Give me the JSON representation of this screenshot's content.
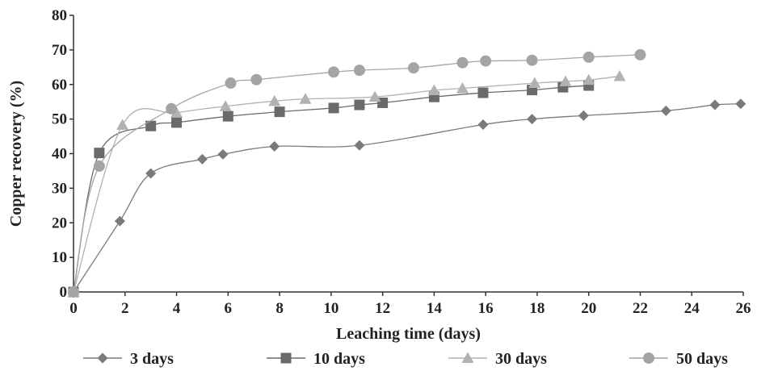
{
  "chart_data": {
    "type": "line",
    "xlabel": "Leaching time (days)",
    "ylabel": "Copper recovery (%)",
    "xlim": [
      0,
      26
    ],
    "ylim": [
      0,
      80
    ],
    "xticks": [
      "0",
      "2",
      "4",
      "6",
      "8",
      "10",
      "12",
      "14",
      "16",
      "18",
      "20",
      "22",
      "24",
      "26"
    ],
    "yticks": [
      "0",
      "10",
      "20",
      "30",
      "40",
      "50",
      "60",
      "70",
      "80"
    ],
    "grid": false,
    "legend_position": "bottom",
    "series": [
      {
        "name": "3 days",
        "marker": "diamond",
        "color": "#7a7a7a",
        "x": [
          0,
          1.8,
          3.0,
          5.0,
          5.8,
          7.8,
          11.1,
          15.9,
          17.8,
          19.8,
          23.0,
          24.9,
          25.9
        ],
        "y": [
          0,
          20.5,
          34.3,
          38.4,
          39.8,
          42.1,
          42.4,
          48.4,
          50.0,
          51.0,
          52.4,
          54.1,
          54.4
        ]
      },
      {
        "name": "10 days",
        "marker": "square",
        "color": "#6a6a6a",
        "x": [
          0,
          1.0,
          3.0,
          4.0,
          6.0,
          8.0,
          10.1,
          11.1,
          12.0,
          14.0,
          15.9,
          17.8,
          19.0,
          20.0
        ],
        "y": [
          0,
          40.2,
          48.0,
          49.0,
          50.8,
          52.1,
          53.2,
          54.1,
          54.7,
          56.4,
          57.6,
          58.4,
          59.2,
          59.7
        ]
      },
      {
        "name": "30 days",
        "marker": "triangle",
        "color": "#b2b2b2",
        "x": [
          0,
          1.9,
          4.0,
          5.9,
          7.8,
          9.0,
          11.7,
          14.0,
          15.1,
          17.9,
          19.1,
          20.0,
          21.2
        ],
        "y": [
          0,
          48.3,
          51.8,
          53.7,
          55.2,
          55.8,
          56.4,
          58.3,
          58.9,
          60.4,
          60.9,
          61.3,
          62.4
        ]
      },
      {
        "name": "50 days",
        "marker": "circle",
        "color": "#a4a4a4",
        "x": [
          0,
          1.0,
          3.8,
          6.1,
          7.1,
          10.1,
          11.1,
          13.2,
          15.1,
          16.0,
          17.8,
          20.0,
          22.0
        ],
        "y": [
          0,
          36.4,
          53.0,
          60.4,
          61.4,
          63.6,
          64.1,
          64.8,
          66.3,
          66.8,
          67.0,
          67.9,
          68.6
        ]
      }
    ]
  }
}
